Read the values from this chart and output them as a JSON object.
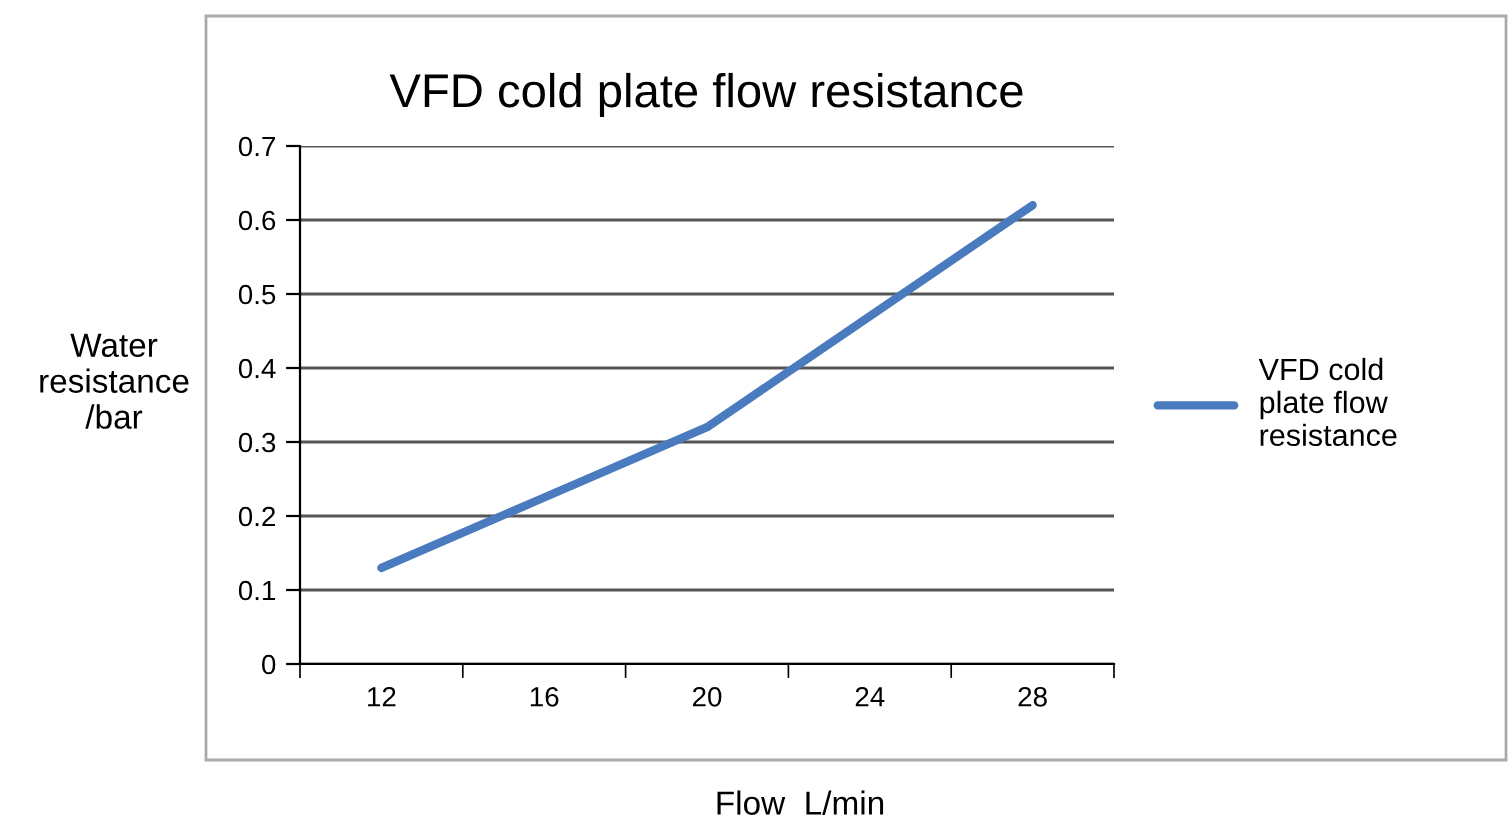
{
  "chart_data": {
    "type": "line",
    "title": "VFD cold plate flow resistance",
    "xlabel": "Flow  L/min",
    "ylabel": "Water\nresistance\n/bar",
    "categories": [
      "12",
      "16",
      "20",
      "24",
      "28"
    ],
    "series": [
      {
        "name": "VFD cold\nplate flow\nresistance",
        "color": "#4a7bbf",
        "values": [
          0.13,
          0.225,
          0.32,
          0.47,
          0.62
        ]
      }
    ],
    "ylim": [
      0,
      0.7
    ],
    "yticks": [
      0,
      0.1,
      0.2,
      0.3,
      0.4,
      0.5,
      0.6,
      0.7
    ],
    "grid": "y",
    "legend": "right",
    "marker": "none",
    "line_style": "solid"
  }
}
